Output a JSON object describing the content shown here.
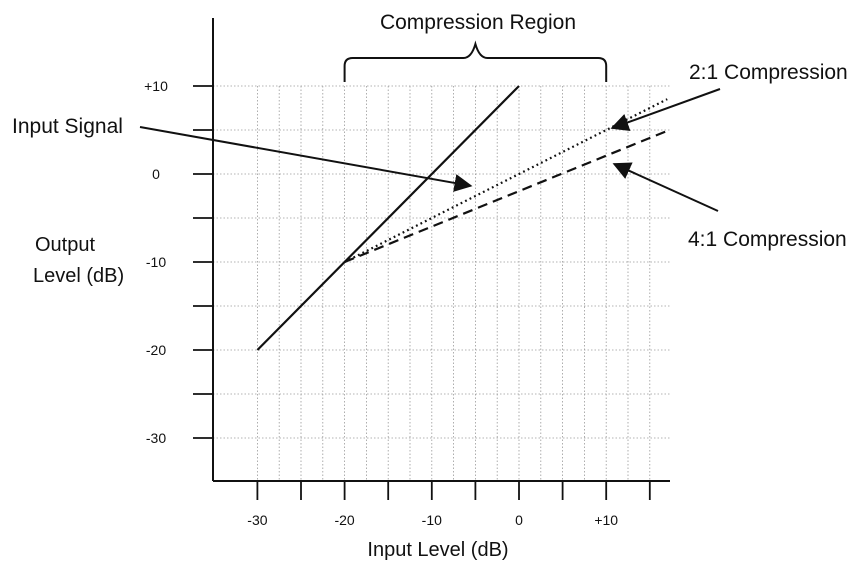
{
  "chart_data": {
    "type": "line",
    "xlabel": "Input Level (dB)",
    "ylabel": [
      "Output",
      "Level (dB)"
    ],
    "xlim": [
      -35,
      18
    ],
    "ylim": [
      -35,
      20
    ],
    "x_ticks": [
      -30,
      -20,
      -10,
      0,
      10
    ],
    "x_tick_labels": [
      "-30",
      "-20",
      "-10",
      "0",
      "+10"
    ],
    "y_ticks": [
      -30,
      -20,
      -10,
      0,
      10
    ],
    "y_tick_labels": [
      "-30",
      "-20",
      "-10",
      "0",
      "+10"
    ],
    "grid": true,
    "series": [
      {
        "name": "Input Signal",
        "style": "solid",
        "x": [
          -30,
          0
        ],
        "y": [
          -20,
          10
        ]
      },
      {
        "name": "2:1 Compression",
        "style": "dotted",
        "x": [
          -20,
          17
        ],
        "y": [
          -10,
          8.5
        ]
      },
      {
        "name": "4:1 Compression",
        "style": "dashed",
        "x": [
          -20,
          17
        ],
        "y": [
          -10,
          4.9
        ]
      }
    ],
    "annotations": {
      "region": {
        "label": "Compression Region",
        "x_start": -20,
        "x_end": 10
      },
      "input_signal": {
        "label": "Input Signal",
        "target_x": -6,
        "target_y": -1
      },
      "comp2": {
        "label": "2:1 Compression",
        "target_x": 10,
        "target_y": 5
      },
      "comp4": {
        "label": "4:1 Compression",
        "target_x": 10,
        "target_y": 0
      }
    }
  }
}
